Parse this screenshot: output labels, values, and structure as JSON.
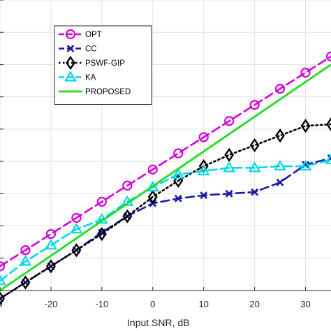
{
  "chart_data": {
    "type": "line",
    "xlabel": "Input SNR, dB",
    "ylabel": "",
    "xlim": [
      -30,
      35
    ],
    "ylim": [
      -10,
      80
    ],
    "x_ticks": [
      "-20",
      "-10",
      "0",
      "10",
      "20",
      "30"
    ],
    "x_ticks_partial": [
      "0"
    ],
    "grid": true,
    "legend_position": "top-left",
    "series": [
      {
        "name": "OPT",
        "color": "#d600d6",
        "line": "dashed",
        "marker": "circle",
        "x": [
          -30,
          -25,
          -20,
          -15,
          -10,
          -5,
          0,
          5,
          10,
          15,
          20,
          25,
          30,
          35
        ],
        "y": [
          -2.5,
          2.5,
          7.5,
          12.5,
          17.5,
          22.5,
          27.5,
          32.5,
          37.5,
          42.5,
          47.5,
          52.5,
          57.5,
          62.5
        ]
      },
      {
        "name": "CC",
        "color": "#1a1aa6",
        "line": "dashed",
        "marker": "x",
        "x": [
          -30,
          -25,
          -20,
          -15,
          -10,
          -5,
          0,
          5,
          10,
          15,
          20,
          25,
          30,
          35
        ],
        "y": [
          -12.5,
          -7.5,
          -2.5,
          2.5,
          8.0,
          13.0,
          17.0,
          18.5,
          19.5,
          20.0,
          20.5,
          23.5,
          29.0,
          31.0
        ]
      },
      {
        "name": "PSWF-GIP",
        "color": "#000000",
        "line": "dotted",
        "marker": "diamond",
        "x": [
          -30,
          -25,
          -20,
          -15,
          -10,
          -5,
          0,
          5,
          10,
          15,
          20,
          25,
          30,
          35
        ],
        "y": [
          -12.5,
          -7.5,
          -2.5,
          2.5,
          7.5,
          13.0,
          19.0,
          24.0,
          28.5,
          32.0,
          35.0,
          38.0,
          41.0,
          41.5
        ]
      },
      {
        "name": "KA",
        "color": "#00d8e8",
        "line": "dashed",
        "marker": "triangle",
        "x": [
          -30,
          -25,
          -20,
          -15,
          -10,
          -5,
          0,
          5,
          10,
          15,
          20,
          25,
          30,
          35
        ],
        "y": [
          -7.0,
          -1.0,
          4.0,
          9.0,
          12.0,
          17.5,
          22.0,
          26.0,
          27.0,
          28.0,
          28.0,
          28.5,
          28.5,
          30.5
        ]
      },
      {
        "name": "PROPOSED",
        "color": "#22dd22",
        "line": "solid",
        "marker": "none",
        "x": [
          -30,
          35
        ],
        "y": [
          -10.0,
          60.0
        ]
      }
    ]
  }
}
